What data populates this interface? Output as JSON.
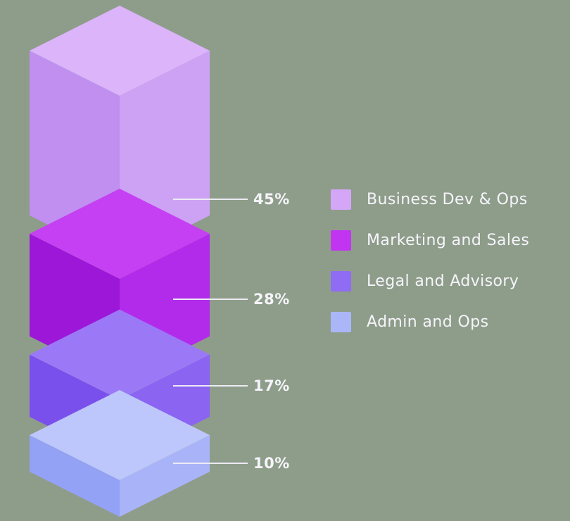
{
  "background_color": "#8e9d8a",
  "text_color": "#f6f4fb",
  "chart_data": {
    "type": "bar",
    "variant": "isometric-3d-stacked-exploded",
    "title": "",
    "unit": "%",
    "legend_position": "right",
    "grid": false,
    "categories": [
      "Business Dev & Ops",
      "Marketing and Sales",
      "Legal and Advisory",
      "Admin and Ops"
    ],
    "values": [
      45,
      28,
      17,
      10
    ],
    "leader_line_color": "#eceaf4",
    "segments": [
      {
        "label": "Business Dev & Ops",
        "value": 45,
        "value_label": "45%",
        "colors": {
          "top": "#dbb4fa",
          "left": "#c08ff0",
          "right": "#cda2f5",
          "legend": "#d3a6f7"
        }
      },
      {
        "label": "Marketing and Sales",
        "value": 28,
        "value_label": "28%",
        "colors": {
          "top": "#c440f2",
          "left": "#9c17d8",
          "right": "#b32bea",
          "legend": "#c235f0"
        }
      },
      {
        "label": "Legal and Advisory",
        "value": 17,
        "value_label": "17%",
        "colors": {
          "top": "#9b79f6",
          "left": "#7a50ec",
          "right": "#8b64f2",
          "legend": "#8f6cf3"
        }
      },
      {
        "label": "Admin and Ops",
        "value": 10,
        "value_label": "10%",
        "colors": {
          "top": "#bdc7fb",
          "left": "#93a2f4",
          "right": "#a9b4f8",
          "legend": "#aab6f8"
        }
      }
    ]
  }
}
